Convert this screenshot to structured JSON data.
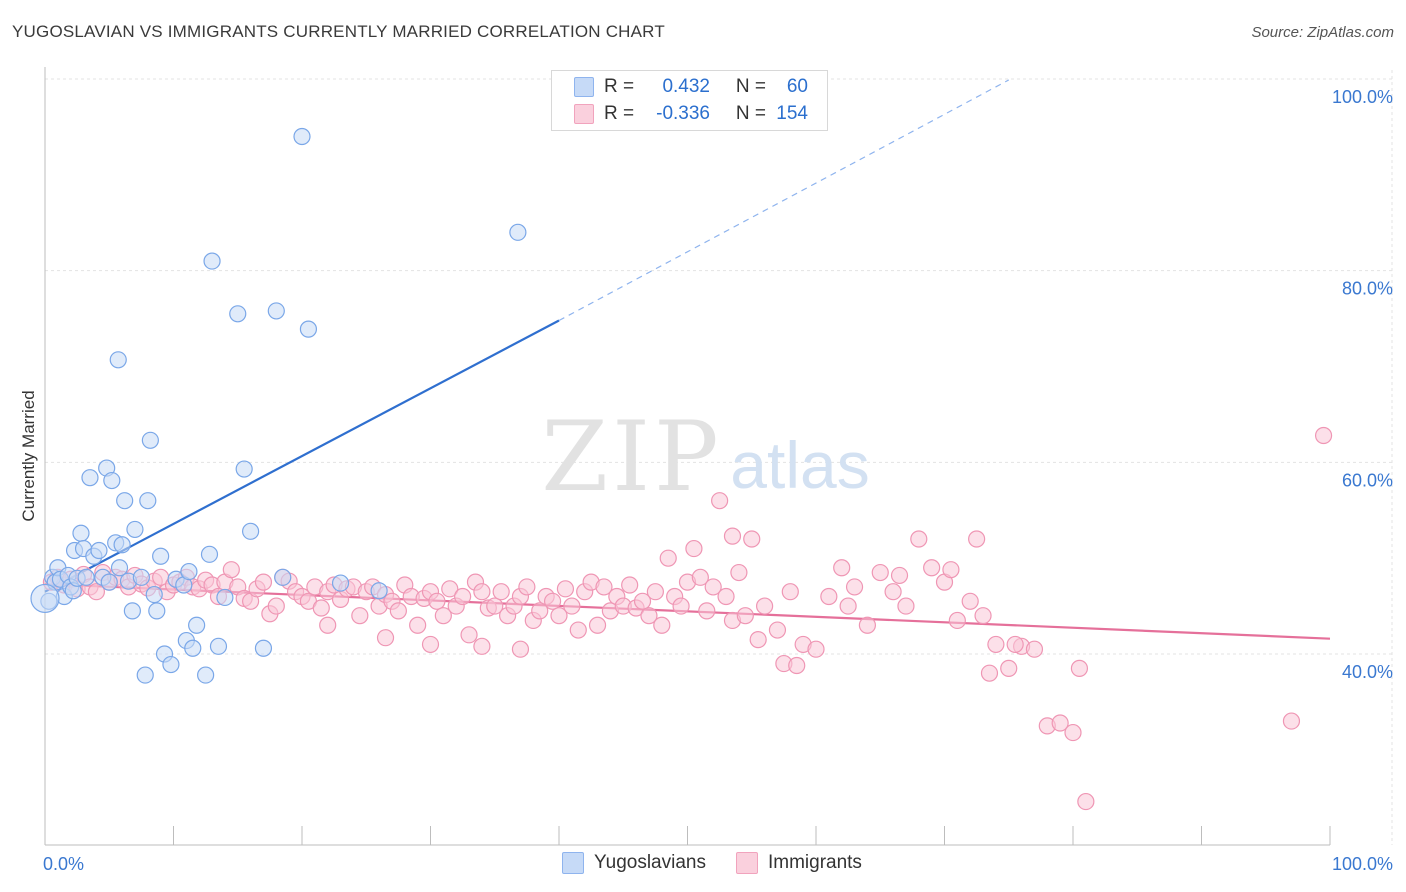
{
  "title": "YUGOSLAVIAN VS IMMIGRANTS CURRENTLY MARRIED CORRELATION CHART",
  "source": "Source: ZipAtlas.com",
  "watermark": {
    "zip": "ZIP",
    "atlas": "atlas"
  },
  "legend": {
    "rows": [
      {
        "r_label": "R =",
        "r_value": "0.432",
        "n_label": "N =",
        "n_value": "60",
        "color": "#8fb4ee",
        "fill": "#c6daf7"
      },
      {
        "r_label": "R =",
        "r_value": "-0.336",
        "n_label": "N =",
        "n_value": "154",
        "color": "#f1a3bd",
        "fill": "#fad0dd"
      }
    ]
  },
  "bottom_legend": {
    "series1": "Yugoslavians",
    "series2": "Immigrants"
  },
  "chart_data": {
    "type": "scatter",
    "title": "YUGOSLAVIAN VS IMMIGRANTS CURRENTLY MARRIED CORRELATION CHART",
    "xlabel": "",
    "ylabel": "Currently Married",
    "xlim": [
      0,
      100
    ],
    "ylim": [
      20,
      104
    ],
    "x_tick_labels": [
      "0.0%",
      "100.0%"
    ],
    "y_ticks": [
      40,
      60,
      80,
      100
    ],
    "y_tick_labels": [
      "40.0%",
      "60.0%",
      "80.0%",
      "100.0%"
    ],
    "grid": true,
    "series": [
      {
        "name": "Yugoslavians",
        "color": "#7aa7e8",
        "fill": "#c7dbf6",
        "trend": {
          "x_start": 0,
          "y_start": 46.5,
          "x_solid_end": 40,
          "y_solid_end": 74.8,
          "x_dash_end": 75,
          "y_dash_end": 99.9
        },
        "points": [
          [
            0.3,
            45.5
          ],
          [
            0.6,
            48.0
          ],
          [
            0.8,
            47.5
          ],
          [
            1.0,
            49.0
          ],
          [
            1.2,
            47.8
          ],
          [
            1.5,
            46.0
          ],
          [
            1.8,
            48.2
          ],
          [
            2.0,
            47.0
          ],
          [
            2.2,
            46.6
          ],
          [
            2.5,
            47.9
          ],
          [
            2.8,
            52.6
          ],
          [
            2.3,
            50.8
          ],
          [
            3.0,
            51.0
          ],
          [
            3.2,
            48.0
          ],
          [
            3.5,
            58.4
          ],
          [
            3.8,
            50.2
          ],
          [
            4.2,
            50.8
          ],
          [
            4.5,
            48.0
          ],
          [
            4.8,
            59.4
          ],
          [
            5.0,
            47.5
          ],
          [
            5.2,
            58.1
          ],
          [
            5.5,
            51.6
          ],
          [
            5.8,
            49.0
          ],
          [
            6.0,
            51.4
          ],
          [
            6.2,
            56.0
          ],
          [
            6.5,
            47.6
          ],
          [
            6.8,
            44.5
          ],
          [
            7.0,
            53.0
          ],
          [
            7.5,
            48.0
          ],
          [
            8.0,
            56.0
          ],
          [
            8.2,
            62.3
          ],
          [
            8.5,
            46.2
          ],
          [
            9.0,
            50.2
          ],
          [
            9.3,
            40.0
          ],
          [
            9.8,
            38.9
          ],
          [
            10.2,
            47.8
          ],
          [
            10.8,
            47.2
          ],
          [
            11.0,
            41.4
          ],
          [
            11.2,
            48.6
          ],
          [
            11.5,
            40.6
          ],
          [
            11.8,
            43.0
          ],
          [
            12.5,
            37.8
          ],
          [
            12.8,
            50.4
          ],
          [
            13.0,
            81.0
          ],
          [
            13.5,
            40.8
          ],
          [
            14.0,
            45.9
          ],
          [
            15.0,
            75.5
          ],
          [
            15.5,
            59.3
          ],
          [
            16.0,
            52.8
          ],
          [
            17.0,
            40.6
          ],
          [
            18.0,
            75.8
          ],
          [
            18.5,
            48.0
          ],
          [
            20.0,
            94.0
          ],
          [
            20.5,
            73.9
          ],
          [
            23.0,
            47.4
          ],
          [
            26.0,
            46.6
          ],
          [
            36.8,
            84.0
          ],
          [
            5.7,
            70.7
          ],
          [
            7.8,
            37.8
          ],
          [
            8.7,
            44.5
          ]
        ]
      },
      {
        "name": "Immigrants",
        "color": "#ef96b4",
        "fill": "#f9c7d7",
        "trend": {
          "x_start": 0,
          "y_start": 47.3,
          "x_end": 100,
          "y_end": 41.6
        },
        "points": [
          [
            0.5,
            47.5
          ],
          [
            1.0,
            48.0
          ],
          [
            1.5,
            47.2
          ],
          [
            2.0,
            47.8
          ],
          [
            2.5,
            46.8
          ],
          [
            3.0,
            48.3
          ],
          [
            3.5,
            47.0
          ],
          [
            4.0,
            46.5
          ],
          [
            4.5,
            48.5
          ],
          [
            5.0,
            47.5
          ],
          [
            5.5,
            48.0
          ],
          [
            6.0,
            47.8
          ],
          [
            6.5,
            47.0
          ],
          [
            7.0,
            48.2
          ],
          [
            7.5,
            47.3
          ],
          [
            8.0,
            46.9
          ],
          [
            8.5,
            47.6
          ],
          [
            9.0,
            48.0
          ],
          [
            9.5,
            46.5
          ],
          [
            10.0,
            47.2
          ],
          [
            10.5,
            47.5
          ],
          [
            11.0,
            48.0
          ],
          [
            11.5,
            47.0
          ],
          [
            12.0,
            46.8
          ],
          [
            12.5,
            47.7
          ],
          [
            13.0,
            47.2
          ],
          [
            13.5,
            46.0
          ],
          [
            14.0,
            47.5
          ],
          [
            14.5,
            48.8
          ],
          [
            15.0,
            47.0
          ],
          [
            15.5,
            45.8
          ],
          [
            16.0,
            45.5
          ],
          [
            16.5,
            46.8
          ],
          [
            17.0,
            47.5
          ],
          [
            17.5,
            44.2
          ],
          [
            18.0,
            45.0
          ],
          [
            18.5,
            48.0
          ],
          [
            19.0,
            47.6
          ],
          [
            19.5,
            46.5
          ],
          [
            20.0,
            46.0
          ],
          [
            20.5,
            45.5
          ],
          [
            21.0,
            47.0
          ],
          [
            21.5,
            44.8
          ],
          [
            22.0,
            46.5
          ],
          [
            22.5,
            47.2
          ],
          [
            23.0,
            45.7
          ],
          [
            23.5,
            46.8
          ],
          [
            24.0,
            47.0
          ],
          [
            24.5,
            44.0
          ],
          [
            25.0,
            46.5
          ],
          [
            25.5,
            47.0
          ],
          [
            26.0,
            45.0
          ],
          [
            26.5,
            46.2
          ],
          [
            27.0,
            45.5
          ],
          [
            27.5,
            44.5
          ],
          [
            28.0,
            47.2
          ],
          [
            28.5,
            46.0
          ],
          [
            29.0,
            43.0
          ],
          [
            29.5,
            45.8
          ],
          [
            30.0,
            46.5
          ],
          [
            30.5,
            45.5
          ],
          [
            31.0,
            44.0
          ],
          [
            31.5,
            46.8
          ],
          [
            32.0,
            45.0
          ],
          [
            32.5,
            46.0
          ],
          [
            33.0,
            42.0
          ],
          [
            33.5,
            47.5
          ],
          [
            34.0,
            46.5
          ],
          [
            34.5,
            44.8
          ],
          [
            35.0,
            45.0
          ],
          [
            35.5,
            46.5
          ],
          [
            36.0,
            44.0
          ],
          [
            36.5,
            45.0
          ],
          [
            37.0,
            46.0
          ],
          [
            37.5,
            47.0
          ],
          [
            38.0,
            43.5
          ],
          [
            38.5,
            44.5
          ],
          [
            39.0,
            46.0
          ],
          [
            39.5,
            45.5
          ],
          [
            40.0,
            44.0
          ],
          [
            40.5,
            46.8
          ],
          [
            41.0,
            45.0
          ],
          [
            41.5,
            42.5
          ],
          [
            42.0,
            46.5
          ],
          [
            42.5,
            47.5
          ],
          [
            43.0,
            43.0
          ],
          [
            43.5,
            47.0
          ],
          [
            44.0,
            44.5
          ],
          [
            44.5,
            46.0
          ],
          [
            45.0,
            45.0
          ],
          [
            45.5,
            47.2
          ],
          [
            46.0,
            44.8
          ],
          [
            46.5,
            45.5
          ],
          [
            47.0,
            44.0
          ],
          [
            47.5,
            46.5
          ],
          [
            48.0,
            43.0
          ],
          [
            48.5,
            50.0
          ],
          [
            49.0,
            46.0
          ],
          [
            49.5,
            45.0
          ],
          [
            50.0,
            47.5
          ],
          [
            50.5,
            51.0
          ],
          [
            51.0,
            48.0
          ],
          [
            51.5,
            44.5
          ],
          [
            52.0,
            47.0
          ],
          [
            52.5,
            56.0
          ],
          [
            53.0,
            46.0
          ],
          [
            53.5,
            43.5
          ],
          [
            54.0,
            48.5
          ],
          [
            54.5,
            44.0
          ],
          [
            55.0,
            52.0
          ],
          [
            55.5,
            41.5
          ],
          [
            56.0,
            45.0
          ],
          [
            57.0,
            42.5
          ],
          [
            58.0,
            46.5
          ],
          [
            59.0,
            41.0
          ],
          [
            60.0,
            40.5
          ],
          [
            61.0,
            46.0
          ],
          [
            62.0,
            49.0
          ],
          [
            63.0,
            47.0
          ],
          [
            64.0,
            43.0
          ],
          [
            65.0,
            48.5
          ],
          [
            66.0,
            46.5
          ],
          [
            67.0,
            45.0
          ],
          [
            68.0,
            52.0
          ],
          [
            69.0,
            49.0
          ],
          [
            70.0,
            47.5
          ],
          [
            71.0,
            43.5
          ],
          [
            72.0,
            45.5
          ],
          [
            73.0,
            44.0
          ],
          [
            74.0,
            41.0
          ],
          [
            75.0,
            38.5
          ],
          [
            76.0,
            40.8
          ],
          [
            77.0,
            40.5
          ],
          [
            78.0,
            32.5
          ],
          [
            79.0,
            32.8
          ],
          [
            80.0,
            31.8
          ],
          [
            80.5,
            38.5
          ],
          [
            81.0,
            24.6
          ],
          [
            99.5,
            62.8
          ],
          [
            97.0,
            33.0
          ],
          [
            72.5,
            52.0
          ],
          [
            57.5,
            39.0
          ],
          [
            58.5,
            38.8
          ],
          [
            62.5,
            45.0
          ],
          [
            66.5,
            48.2
          ],
          [
            70.5,
            48.8
          ],
          [
            73.5,
            38.0
          ],
          [
            75.5,
            41.0
          ],
          [
            37.0,
            40.5
          ],
          [
            34.0,
            40.8
          ],
          [
            30.0,
            41.0
          ],
          [
            26.5,
            41.7
          ],
          [
            22.0,
            43.0
          ],
          [
            53.5,
            52.3
          ]
        ]
      }
    ]
  }
}
